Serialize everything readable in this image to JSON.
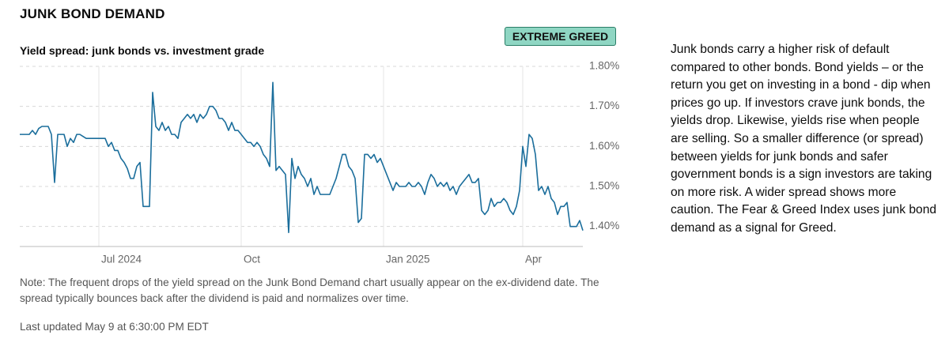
{
  "chart_data": {
    "type": "line",
    "title": "JUNK BOND DEMAND",
    "badge": "EXTREME GREED",
    "subtitle": "Yield spread: junk bonds vs. investment grade",
    "color": "#1b6e9c",
    "grid": true,
    "ylim": [
      1.35,
      1.8
    ],
    "yticks": [
      {
        "value": 1.4,
        "label": "1.40%"
      },
      {
        "value": 1.5,
        "label": "1.50%"
      },
      {
        "value": 1.6,
        "label": "1.60%"
      },
      {
        "value": 1.7,
        "label": "1.70%"
      },
      {
        "value": 1.8,
        "label": "1.80%"
      }
    ],
    "xlim": [
      0,
      178
    ],
    "xticks": [
      {
        "value": 25,
        "label": "Jul 2024"
      },
      {
        "value": 70,
        "label": "Oct"
      },
      {
        "value": 115,
        "label": "Jan 2025"
      },
      {
        "value": 159,
        "label": "Apr"
      }
    ],
    "values": [
      1.63,
      1.63,
      1.63,
      1.63,
      1.64,
      1.63,
      1.645,
      1.65,
      1.65,
      1.65,
      1.63,
      1.51,
      1.63,
      1.63,
      1.63,
      1.6,
      1.62,
      1.61,
      1.63,
      1.63,
      1.625,
      1.62,
      1.62,
      1.62,
      1.62,
      1.62,
      1.62,
      1.62,
      1.6,
      1.61,
      1.59,
      1.59,
      1.57,
      1.56,
      1.545,
      1.52,
      1.52,
      1.55,
      1.56,
      1.45,
      1.45,
      1.45,
      1.735,
      1.65,
      1.64,
      1.66,
      1.64,
      1.65,
      1.63,
      1.63,
      1.62,
      1.66,
      1.67,
      1.68,
      1.67,
      1.68,
      1.66,
      1.68,
      1.67,
      1.68,
      1.7,
      1.7,
      1.69,
      1.67,
      1.67,
      1.66,
      1.64,
      1.66,
      1.64,
      1.64,
      1.63,
      1.62,
      1.61,
      1.61,
      1.6,
      1.61,
      1.6,
      1.58,
      1.57,
      1.55,
      1.76,
      1.54,
      1.55,
      1.54,
      1.53,
      1.385,
      1.57,
      1.52,
      1.55,
      1.53,
      1.52,
      1.5,
      1.52,
      1.48,
      1.5,
      1.48,
      1.48,
      1.48,
      1.48,
      1.5,
      1.52,
      1.55,
      1.58,
      1.58,
      1.55,
      1.54,
      1.52,
      1.41,
      1.42,
      1.58,
      1.58,
      1.57,
      1.58,
      1.56,
      1.57,
      1.55,
      1.53,
      1.51,
      1.49,
      1.51,
      1.5,
      1.5,
      1.5,
      1.51,
      1.5,
      1.5,
      1.51,
      1.5,
      1.48,
      1.51,
      1.53,
      1.52,
      1.5,
      1.51,
      1.5,
      1.51,
      1.49,
      1.5,
      1.48,
      1.5,
      1.51,
      1.52,
      1.53,
      1.51,
      1.51,
      1.52,
      1.44,
      1.43,
      1.44,
      1.47,
      1.45,
      1.46,
      1.46,
      1.47,
      1.46,
      1.44,
      1.43,
      1.45,
      1.49,
      1.6,
      1.55,
      1.63,
      1.62,
      1.58,
      1.49,
      1.5,
      1.48,
      1.5,
      1.47,
      1.46,
      1.43,
      1.45,
      1.45,
      1.46,
      1.4,
      1.4,
      1.4,
      1.415,
      1.39
    ],
    "description": "Junk bonds carry a higher risk of default compared to other bonds. Bond yields – or the return you get on investing in a bond - dip when prices go up. If investors crave junk bonds, the yields drop. Likewise, yields rise when people are selling. So a smaller difference (or spread) between yields for junk bonds and safer government bonds is a sign investors are taking on more risk. A wider spread shows more caution. The Fear & Greed Index uses junk bond demand as a signal for Greed.",
    "note": "Note: The frequent drops of the yield spread on the Junk Bond Demand chart usually appear on the ex-dividend date. The spread typically bounces back after the dividend is paid and normalizes over time.",
    "last_updated": "Last updated May 9 at 6:30:00 PM EDT"
  }
}
